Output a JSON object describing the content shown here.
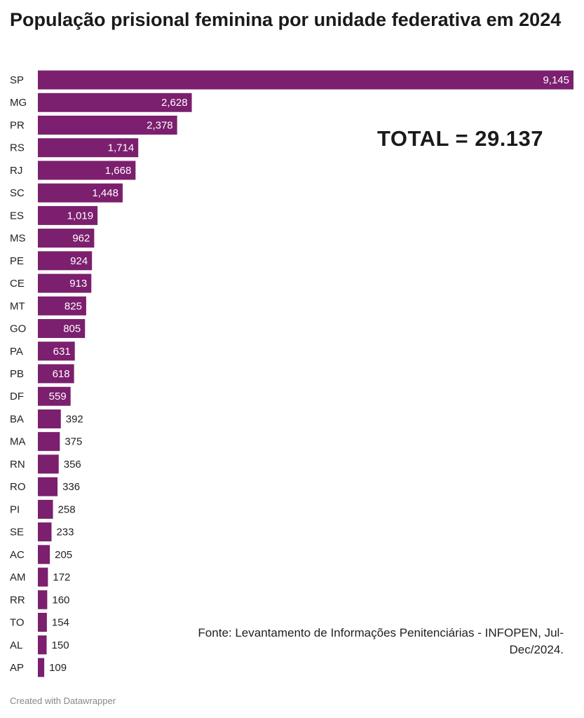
{
  "title": "População prisional feminina por unidade federativa em 2024",
  "total_label": "TOTAL = 29.137",
  "source": "Fonte: Levantamento de Informações Penitenciárias - INFOPEN, Jul-Dec/2024.",
  "credit": "Created with Datawrapper",
  "colors": {
    "bar": "#7b1f6e",
    "label_inside": "#ffffff",
    "label_outside": "#222222"
  },
  "chart_data": {
    "type": "bar",
    "orientation": "horizontal",
    "title": "População prisional feminina por unidade federativa em 2024",
    "xlabel": "",
    "ylabel": "",
    "xlim": [
      0,
      9145
    ],
    "grid": false,
    "categories": [
      "SP",
      "MG",
      "PR",
      "RS",
      "RJ",
      "SC",
      "ES",
      "MS",
      "PE",
      "CE",
      "MT",
      "GO",
      "PA",
      "PB",
      "DF",
      "BA",
      "MA",
      "RN",
      "RO",
      "PI",
      "SE",
      "AC",
      "AM",
      "RR",
      "TO",
      "AL",
      "AP"
    ],
    "values": [
      9145,
      2628,
      2378,
      1714,
      1668,
      1448,
      1019,
      962,
      924,
      913,
      825,
      805,
      631,
      618,
      559,
      392,
      375,
      356,
      336,
      258,
      233,
      205,
      172,
      160,
      154,
      150,
      109
    ],
    "value_labels": [
      "9,145",
      "2,628",
      "2,378",
      "1,714",
      "1,668",
      "1,448",
      "1,019",
      "962",
      "924",
      "913",
      "825",
      "805",
      "631",
      "618",
      "559",
      "392",
      "375",
      "356",
      "336",
      "258",
      "233",
      "205",
      "172",
      "160",
      "154",
      "150",
      "109"
    ]
  }
}
